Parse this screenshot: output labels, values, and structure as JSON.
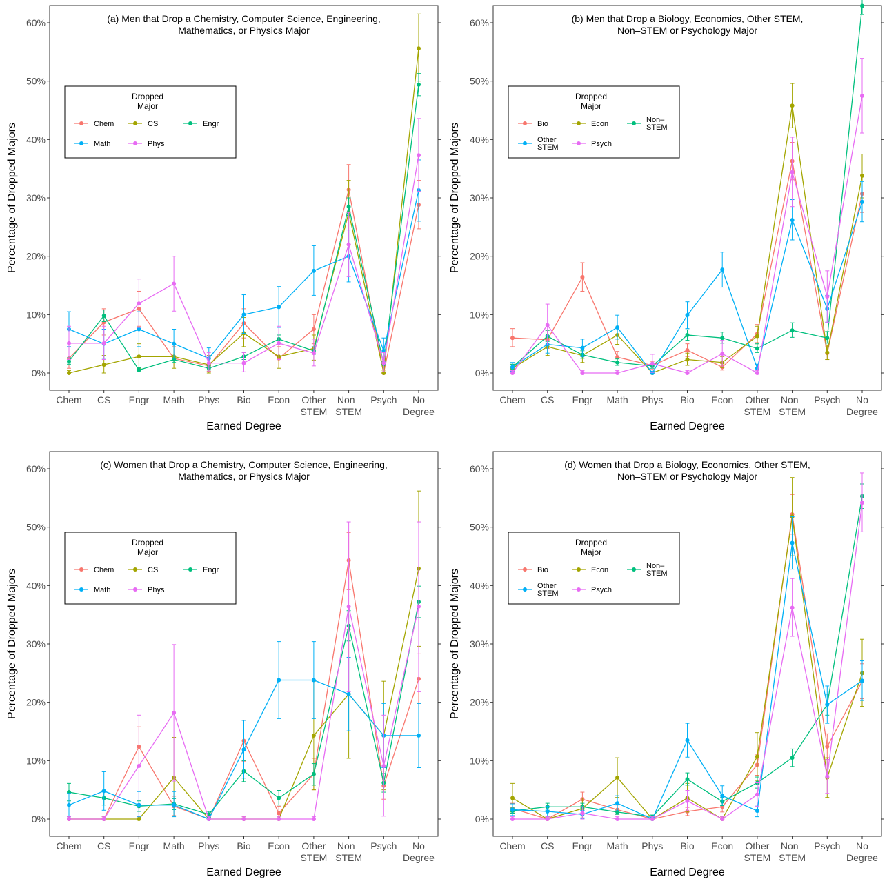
{
  "figure": {
    "categories": [
      "Chem",
      "CS",
      "Engr",
      "Math",
      "Phys",
      "Bio",
      "Econ",
      "Other STEM",
      "Non–STEM",
      "Psych",
      "No Degree"
    ],
    "category_lines": [
      [
        "Chem"
      ],
      [
        "CS"
      ],
      [
        "Engr"
      ],
      [
        "Math"
      ],
      [
        "Phys"
      ],
      [
        "Bio"
      ],
      [
        "Econ"
      ],
      [
        "Other",
        "STEM"
      ],
      [
        "Non–",
        "STEM"
      ],
      [
        "Psych"
      ],
      [
        "No",
        "Degree"
      ]
    ],
    "yticks": [
      "0%",
      "10%",
      "20%",
      "30%",
      "40%",
      "50%",
      "60%"
    ],
    "xlabel": "Earned Degree",
    "ylabel": "Percentage of Dropped Majors",
    "legend_title": [
      "Dropped",
      "Major"
    ]
  },
  "chart_data": [
    {
      "type": "line",
      "title_lines": [
        "(a) Men that Drop a Chemistry, Computer Science, Engineering,",
        "Mathematics, or Physics Major"
      ],
      "ylim": [
        0,
        62
      ],
      "series": [
        {
          "name": "Chem",
          "color": "#F8766D",
          "values": [
            2.5,
            8.7,
            11.0,
            2.5,
            1.2,
            8.5,
            2.5,
            7.5,
            31.4,
            0.0,
            28.8
          ],
          "lower": [
            0.8,
            6.5,
            8.0,
            1.0,
            0.3,
            6.0,
            1.0,
            5.0,
            27.0,
            0.0,
            24.7
          ],
          "upper": [
            4.5,
            11.0,
            14.0,
            4.5,
            2.5,
            11.0,
            4.5,
            10.0,
            35.7,
            0.5,
            33.0
          ]
        },
        {
          "name": "CS",
          "color": "#A3A500",
          "values": [
            0.0,
            1.4,
            2.8,
            2.8,
            1.4,
            6.8,
            2.8,
            4.2,
            27.5,
            0.0,
            55.6
          ],
          "lower": [
            0.0,
            0.0,
            0.8,
            0.8,
            0.0,
            4.5,
            0.8,
            2.2,
            22.0,
            0.0,
            50.0
          ],
          "upper": [
            0.4,
            3.0,
            5.0,
            5.0,
            3.0,
            9.5,
            5.0,
            6.5,
            33.0,
            0.5,
            61.5
          ]
        },
        {
          "name": "Engr",
          "color": "#00BF7D",
          "values": [
            2.0,
            9.8,
            0.5,
            2.3,
            0.8,
            2.8,
            5.8,
            3.8,
            28.5,
            1.5,
            49.4
          ],
          "lower": [
            1.5,
            8.8,
            0.2,
            1.8,
            0.5,
            2.3,
            5.0,
            3.2,
            27.0,
            1.0,
            47.5
          ],
          "upper": [
            2.6,
            10.8,
            0.9,
            2.9,
            1.2,
            3.5,
            6.5,
            4.5,
            30.0,
            2.0,
            51.3
          ]
        },
        {
          "name": "Math",
          "color": "#00B0F6",
          "values": [
            7.5,
            5.0,
            7.5,
            5.0,
            2.5,
            10.0,
            11.3,
            17.5,
            20.0,
            3.8,
            31.3
          ],
          "lower": [
            4.5,
            2.5,
            4.5,
            2.5,
            1.0,
            6.8,
            7.8,
            13.3,
            15.6,
            1.8,
            26.0
          ],
          "upper": [
            10.5,
            7.5,
            10.5,
            7.5,
            4.3,
            13.4,
            14.8,
            21.8,
            24.5,
            6.0,
            36.5
          ]
        },
        {
          "name": "Phys",
          "color": "#E76BF3",
          "values": [
            5.1,
            5.1,
            11.9,
            15.3,
            1.7,
            1.7,
            5.1,
            3.4,
            22.0,
            1.7,
            37.3
          ],
          "lower": [
            2.3,
            2.3,
            7.8,
            10.6,
            0.2,
            0.2,
            2.3,
            1.2,
            16.5,
            0.2,
            31.1
          ],
          "upper": [
            8.0,
            8.0,
            16.1,
            20.0,
            3.5,
            3.5,
            8.0,
            5.8,
            27.5,
            3.5,
            43.6
          ]
        }
      ]
    },
    {
      "type": "line",
      "title_lines": [
        "(b) Men that Drop a Biology, Economics, Other STEM,",
        "Non–STEM or Psychology Major"
      ],
      "ylim": [
        0,
        62
      ],
      "series": [
        {
          "name": "Bio",
          "color": "#F8766D",
          "values": [
            6.0,
            5.7,
            16.4,
            2.7,
            1.3,
            3.9,
            1.0,
            6.7,
            36.3,
            3.4,
            30.7
          ],
          "lower": [
            4.5,
            4.2,
            14.0,
            1.7,
            0.6,
            2.8,
            0.5,
            5.2,
            33.1,
            2.3,
            27.5
          ],
          "upper": [
            7.6,
            7.3,
            18.9,
            3.7,
            2.0,
            5.0,
            1.6,
            8.3,
            39.5,
            4.6,
            33.9
          ]
        },
        {
          "name": "Econ",
          "color": "#A3A500",
          "values": [
            0.8,
            4.5,
            3.0,
            6.5,
            0.0,
            2.3,
            1.8,
            6.3,
            45.8,
            3.5,
            33.8
          ],
          "lower": [
            0.3,
            3.0,
            1.8,
            4.9,
            0.0,
            1.3,
            0.9,
            4.8,
            42.0,
            2.3,
            30.0
          ],
          "upper": [
            1.4,
            6.0,
            4.3,
            8.2,
            0.3,
            3.4,
            2.8,
            8.0,
            49.6,
            4.8,
            37.5
          ]
        },
        {
          "name": "Non–STEM",
          "color": "#00BF7D",
          "values": [
            1.0,
            6.3,
            3.1,
            1.8,
            1.2,
            6.5,
            6.0,
            4.2,
            7.3,
            6.0,
            62.9
          ],
          "lower": [
            0.6,
            5.4,
            2.5,
            1.3,
            0.8,
            5.6,
            5.1,
            3.5,
            6.1,
            5.1,
            61.4
          ],
          "upper": [
            1.5,
            7.3,
            3.8,
            2.4,
            1.7,
            7.4,
            7.0,
            5.0,
            8.6,
            7.1,
            64.4
          ]
        },
        {
          "name": "Other STEM",
          "color": "#00B0F6",
          "values": [
            1.0,
            4.9,
            4.3,
            7.8,
            0.0,
            9.9,
            17.7,
            0.8,
            26.2,
            11.0,
            29.3
          ],
          "lower": [
            0.3,
            3.4,
            2.8,
            5.8,
            0.0,
            7.6,
            14.7,
            0.2,
            22.8,
            8.7,
            25.9
          ],
          "upper": [
            1.8,
            6.4,
            5.8,
            9.9,
            0.3,
            12.2,
            20.7,
            1.5,
            29.7,
            13.3,
            32.8
          ]
        },
        {
          "name": "Psych",
          "color": "#E76BF3",
          "values": [
            0.0,
            8.2,
            0.0,
            0.0,
            1.6,
            0.0,
            3.3,
            0.0,
            34.4,
            13.1,
            47.5
          ],
          "lower": [
            0.0,
            4.8,
            0.0,
            0.0,
            0.1,
            0.0,
            1.0,
            0.0,
            28.5,
            8.7,
            41.1
          ],
          "upper": [
            0.4,
            11.8,
            0.4,
            0.4,
            3.2,
            0.4,
            5.6,
            0.4,
            40.4,
            17.5,
            53.9
          ]
        }
      ]
    },
    {
      "type": "line",
      "title_lines": [
        "(c) Women that Drop a Chemistry, Computer Science, Engineering,",
        "Mathematics, or Physics Major"
      ],
      "ylim": [
        0,
        62
      ],
      "series": [
        {
          "name": "Chem",
          "color": "#F8766D",
          "values": [
            0.0,
            0.0,
            12.4,
            2.2,
            0.0,
            13.4,
            1.0,
            7.7,
            44.3,
            5.7,
            24.0
          ],
          "lower": [
            0.0,
            0.0,
            9.0,
            0.6,
            0.0,
            9.9,
            0.0,
            5.0,
            39.3,
            3.4,
            19.8
          ],
          "upper": [
            0.4,
            0.4,
            15.8,
            3.9,
            0.4,
            16.9,
            2.2,
            10.4,
            49.1,
            8.2,
            28.3
          ]
        },
        {
          "name": "CS",
          "color": "#A3A500",
          "values": [
            0.0,
            0.0,
            0.0,
            7.1,
            0.0,
            0.0,
            0.0,
            14.3,
            21.4,
            14.3,
            42.9
          ],
          "lower": [
            0.0,
            0.0,
            0.0,
            0.5,
            0.0,
            0.0,
            0.0,
            5.0,
            10.4,
            5.0,
            29.6
          ],
          "upper": [
            0.4,
            0.4,
            0.4,
            14.0,
            0.4,
            0.4,
            0.4,
            23.6,
            32.5,
            23.6,
            56.2
          ]
        },
        {
          "name": "Engr",
          "color": "#00BF7D",
          "values": [
            4.6,
            3.6,
            2.2,
            2.6,
            0.8,
            8.2,
            3.6,
            7.7,
            33.1,
            6.2,
            37.2
          ],
          "lower": [
            3.1,
            2.4,
            1.3,
            1.6,
            0.3,
            6.4,
            2.4,
            5.8,
            30.5,
            4.6,
            34.5
          ],
          "upper": [
            6.1,
            4.9,
            3.1,
            3.5,
            1.3,
            10.0,
            4.9,
            9.5,
            35.7,
            7.8,
            39.9
          ]
        },
        {
          "name": "Math",
          "color": "#00B0F6",
          "values": [
            2.4,
            4.8,
            2.4,
            2.4,
            0.0,
            11.9,
            23.8,
            23.8,
            21.4,
            14.3,
            14.3
          ],
          "lower": [
            0.4,
            1.5,
            0.4,
            0.4,
            0.0,
            7.0,
            17.2,
            17.2,
            15.1,
            8.8,
            8.8
          ],
          "upper": [
            4.4,
            8.1,
            4.7,
            4.7,
            0.4,
            16.9,
            30.4,
            30.4,
            27.7,
            19.8,
            19.8
          ]
        },
        {
          "name": "Phys",
          "color": "#E76BF3",
          "values": [
            0.0,
            0.0,
            9.1,
            18.2,
            0.0,
            0.0,
            0.0,
            0.0,
            36.4,
            9.1,
            36.4
          ],
          "lower": [
            0.0,
            0.0,
            0.5,
            6.5,
            0.0,
            0.0,
            0.0,
            0.0,
            21.8,
            0.5,
            21.8
          ],
          "upper": [
            0.4,
            0.4,
            17.8,
            29.9,
            0.4,
            0.4,
            0.4,
            0.4,
            50.9,
            17.8,
            50.9
          ]
        }
      ]
    },
    {
      "type": "line",
      "title_lines": [
        "(d) Women that Drop a Biology, Economics, Other STEM,",
        "Non–STEM or Psychology Major"
      ],
      "ylim": [
        0,
        62
      ],
      "series": [
        {
          "name": "Bio",
          "color": "#F8766D",
          "values": [
            1.8,
            0.0,
            3.4,
            1.6,
            0.0,
            1.3,
            2.1,
            9.3,
            52.2,
            12.4,
            23.6
          ],
          "lower": [
            1.0,
            0.0,
            2.3,
            0.8,
            0.0,
            0.6,
            1.2,
            7.5,
            48.8,
            10.2,
            20.6
          ],
          "upper": [
            2.7,
            0.4,
            4.6,
            2.4,
            0.4,
            2.0,
            3.0,
            11.1,
            55.6,
            14.6,
            26.6
          ]
        },
        {
          "name": "Econ",
          "color": "#A3A500",
          "values": [
            3.6,
            0.0,
            1.8,
            7.1,
            0.0,
            3.6,
            0.0,
            10.7,
            51.8,
            7.1,
            25.0
          ],
          "lower": [
            1.2,
            0.0,
            0.2,
            3.7,
            0.0,
            1.2,
            0.0,
            6.6,
            45.1,
            3.7,
            19.3
          ],
          "upper": [
            6.1,
            0.4,
            3.6,
            10.5,
            0.4,
            6.1,
            0.4,
            14.8,
            58.5,
            10.5,
            30.8
          ]
        },
        {
          "name": "Non–STEM",
          "color": "#00BF7D",
          "values": [
            1.4,
            2.1,
            2.1,
            1.2,
            0.4,
            6.8,
            3.0,
            6.2,
            10.5,
            19.6,
            55.3
          ],
          "lower": [
            1.0,
            1.5,
            1.5,
            0.8,
            0.2,
            5.8,
            2.3,
            5.3,
            9.0,
            17.8,
            53.2
          ],
          "upper": [
            1.9,
            2.7,
            2.7,
            1.7,
            0.7,
            7.9,
            3.7,
            7.2,
            12.0,
            21.4,
            57.4
          ]
        },
        {
          "name": "Other STEM",
          "color": "#00B0F6",
          "values": [
            1.6,
            1.3,
            0.8,
            2.7,
            0.0,
            13.5,
            4.0,
            1.4,
            47.3,
            19.6,
            23.7
          ],
          "lower": [
            0.6,
            0.4,
            0.1,
            1.4,
            0.0,
            10.6,
            2.4,
            0.4,
            42.8,
            16.4,
            20.3
          ],
          "upper": [
            2.6,
            2.2,
            1.5,
            4.0,
            0.3,
            16.4,
            5.7,
            2.4,
            51.8,
            22.8,
            27.1
          ]
        },
        {
          "name": "Psych",
          "color": "#E76BF3",
          "values": [
            0.0,
            0.0,
            1.0,
            0.0,
            0.0,
            3.1,
            0.0,
            4.2,
            36.2,
            7.3,
            54.2
          ],
          "lower": [
            0.0,
            0.0,
            0.0,
            0.0,
            0.0,
            1.4,
            0.0,
            2.2,
            31.3,
            4.4,
            49.2
          ],
          "upper": [
            0.4,
            0.4,
            2.1,
            0.4,
            0.4,
            4.9,
            0.4,
            6.2,
            41.2,
            10.2,
            59.3
          ]
        }
      ]
    }
  ]
}
